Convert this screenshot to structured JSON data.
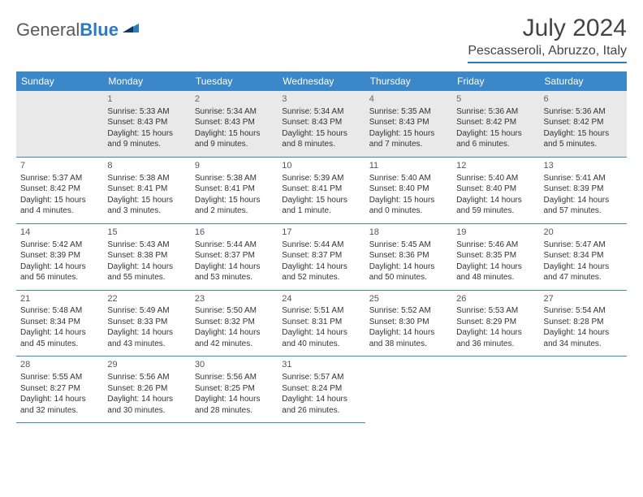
{
  "logo": {
    "text_a": "General",
    "text_b": "Blue"
  },
  "title": "July 2024",
  "location": "Pescasseroli, Abruzzo, Italy",
  "daynames": [
    "Sunday",
    "Monday",
    "Tuesday",
    "Wednesday",
    "Thursday",
    "Friday",
    "Saturday"
  ],
  "header_bg": "#3b87c8",
  "rule_color": "#2b7bbf",
  "weeks": [
    [
      null,
      {
        "n": "1",
        "sr": "Sunrise: 5:33 AM",
        "ss": "Sunset: 8:43 PM",
        "d1": "Daylight: 15 hours",
        "d2": "and 9 minutes."
      },
      {
        "n": "2",
        "sr": "Sunrise: 5:34 AM",
        "ss": "Sunset: 8:43 PM",
        "d1": "Daylight: 15 hours",
        "d2": "and 9 minutes."
      },
      {
        "n": "3",
        "sr": "Sunrise: 5:34 AM",
        "ss": "Sunset: 8:43 PM",
        "d1": "Daylight: 15 hours",
        "d2": "and 8 minutes."
      },
      {
        "n": "4",
        "sr": "Sunrise: 5:35 AM",
        "ss": "Sunset: 8:43 PM",
        "d1": "Daylight: 15 hours",
        "d2": "and 7 minutes."
      },
      {
        "n": "5",
        "sr": "Sunrise: 5:36 AM",
        "ss": "Sunset: 8:42 PM",
        "d1": "Daylight: 15 hours",
        "d2": "and 6 minutes."
      },
      {
        "n": "6",
        "sr": "Sunrise: 5:36 AM",
        "ss": "Sunset: 8:42 PM",
        "d1": "Daylight: 15 hours",
        "d2": "and 5 minutes."
      }
    ],
    [
      {
        "n": "7",
        "sr": "Sunrise: 5:37 AM",
        "ss": "Sunset: 8:42 PM",
        "d1": "Daylight: 15 hours",
        "d2": "and 4 minutes."
      },
      {
        "n": "8",
        "sr": "Sunrise: 5:38 AM",
        "ss": "Sunset: 8:41 PM",
        "d1": "Daylight: 15 hours",
        "d2": "and 3 minutes."
      },
      {
        "n": "9",
        "sr": "Sunrise: 5:38 AM",
        "ss": "Sunset: 8:41 PM",
        "d1": "Daylight: 15 hours",
        "d2": "and 2 minutes."
      },
      {
        "n": "10",
        "sr": "Sunrise: 5:39 AM",
        "ss": "Sunset: 8:41 PM",
        "d1": "Daylight: 15 hours",
        "d2": "and 1 minute."
      },
      {
        "n": "11",
        "sr": "Sunrise: 5:40 AM",
        "ss": "Sunset: 8:40 PM",
        "d1": "Daylight: 15 hours",
        "d2": "and 0 minutes."
      },
      {
        "n": "12",
        "sr": "Sunrise: 5:40 AM",
        "ss": "Sunset: 8:40 PM",
        "d1": "Daylight: 14 hours",
        "d2": "and 59 minutes."
      },
      {
        "n": "13",
        "sr": "Sunrise: 5:41 AM",
        "ss": "Sunset: 8:39 PM",
        "d1": "Daylight: 14 hours",
        "d2": "and 57 minutes."
      }
    ],
    [
      {
        "n": "14",
        "sr": "Sunrise: 5:42 AM",
        "ss": "Sunset: 8:39 PM",
        "d1": "Daylight: 14 hours",
        "d2": "and 56 minutes."
      },
      {
        "n": "15",
        "sr": "Sunrise: 5:43 AM",
        "ss": "Sunset: 8:38 PM",
        "d1": "Daylight: 14 hours",
        "d2": "and 55 minutes."
      },
      {
        "n": "16",
        "sr": "Sunrise: 5:44 AM",
        "ss": "Sunset: 8:37 PM",
        "d1": "Daylight: 14 hours",
        "d2": "and 53 minutes."
      },
      {
        "n": "17",
        "sr": "Sunrise: 5:44 AM",
        "ss": "Sunset: 8:37 PM",
        "d1": "Daylight: 14 hours",
        "d2": "and 52 minutes."
      },
      {
        "n": "18",
        "sr": "Sunrise: 5:45 AM",
        "ss": "Sunset: 8:36 PM",
        "d1": "Daylight: 14 hours",
        "d2": "and 50 minutes."
      },
      {
        "n": "19",
        "sr": "Sunrise: 5:46 AM",
        "ss": "Sunset: 8:35 PM",
        "d1": "Daylight: 14 hours",
        "d2": "and 48 minutes."
      },
      {
        "n": "20",
        "sr": "Sunrise: 5:47 AM",
        "ss": "Sunset: 8:34 PM",
        "d1": "Daylight: 14 hours",
        "d2": "and 47 minutes."
      }
    ],
    [
      {
        "n": "21",
        "sr": "Sunrise: 5:48 AM",
        "ss": "Sunset: 8:34 PM",
        "d1": "Daylight: 14 hours",
        "d2": "and 45 minutes."
      },
      {
        "n": "22",
        "sr": "Sunrise: 5:49 AM",
        "ss": "Sunset: 8:33 PM",
        "d1": "Daylight: 14 hours",
        "d2": "and 43 minutes."
      },
      {
        "n": "23",
        "sr": "Sunrise: 5:50 AM",
        "ss": "Sunset: 8:32 PM",
        "d1": "Daylight: 14 hours",
        "d2": "and 42 minutes."
      },
      {
        "n": "24",
        "sr": "Sunrise: 5:51 AM",
        "ss": "Sunset: 8:31 PM",
        "d1": "Daylight: 14 hours",
        "d2": "and 40 minutes."
      },
      {
        "n": "25",
        "sr": "Sunrise: 5:52 AM",
        "ss": "Sunset: 8:30 PM",
        "d1": "Daylight: 14 hours",
        "d2": "and 38 minutes."
      },
      {
        "n": "26",
        "sr": "Sunrise: 5:53 AM",
        "ss": "Sunset: 8:29 PM",
        "d1": "Daylight: 14 hours",
        "d2": "and 36 minutes."
      },
      {
        "n": "27",
        "sr": "Sunrise: 5:54 AM",
        "ss": "Sunset: 8:28 PM",
        "d1": "Daylight: 14 hours",
        "d2": "and 34 minutes."
      }
    ],
    [
      {
        "n": "28",
        "sr": "Sunrise: 5:55 AM",
        "ss": "Sunset: 8:27 PM",
        "d1": "Daylight: 14 hours",
        "d2": "and 32 minutes."
      },
      {
        "n": "29",
        "sr": "Sunrise: 5:56 AM",
        "ss": "Sunset: 8:26 PM",
        "d1": "Daylight: 14 hours",
        "d2": "and 30 minutes."
      },
      {
        "n": "30",
        "sr": "Sunrise: 5:56 AM",
        "ss": "Sunset: 8:25 PM",
        "d1": "Daylight: 14 hours",
        "d2": "and 28 minutes."
      },
      {
        "n": "31",
        "sr": "Sunrise: 5:57 AM",
        "ss": "Sunset: 8:24 PM",
        "d1": "Daylight: 14 hours",
        "d2": "and 26 minutes."
      },
      null,
      null,
      null
    ]
  ]
}
